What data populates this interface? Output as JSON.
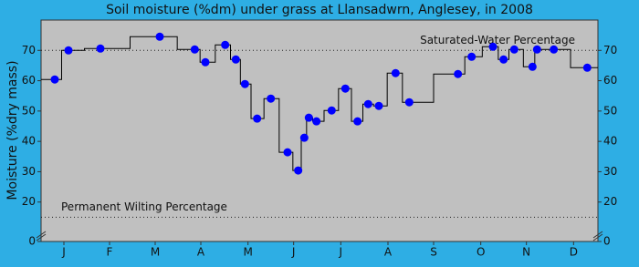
{
  "chart_data": {
    "type": "step-scatter",
    "title": "Soil moisture (%dm) under grass at Llansadwrn, Anglesey, in 2008",
    "y_label": "Moisture (%dry mass)",
    "xlim": [
      0,
      366
    ],
    "xticks": [
      {
        "value": 15,
        "label": "J"
      },
      {
        "value": 45,
        "label": "F"
      },
      {
        "value": 75,
        "label": "M"
      },
      {
        "value": 105,
        "label": "A"
      },
      {
        "value": 136,
        "label": "M"
      },
      {
        "value": 166,
        "label": "J"
      },
      {
        "value": 197,
        "label": "J"
      },
      {
        "value": 228,
        "label": "A"
      },
      {
        "value": 258,
        "label": "S"
      },
      {
        "value": 289,
        "label": "O"
      },
      {
        "value": 319,
        "label": "N"
      },
      {
        "value": 350,
        "label": "D"
      }
    ],
    "ylim": [
      0,
      80
    ],
    "axis_break": [
      0,
      10
    ],
    "yticks": [
      0,
      20,
      30,
      40,
      50,
      60,
      70
    ],
    "reference_lines": [
      {
        "name": "Saturated-Water Percentage",
        "value": 70
      },
      {
        "name": "Permanent Wilting Percentage",
        "value": 15
      }
    ],
    "series": [
      {
        "color": "#0000ff",
        "line_color": "#000000",
        "x": [
          9,
          18,
          39,
          78,
          101,
          108,
          121,
          128,
          134,
          142,
          151,
          162,
          169,
          173,
          176,
          181,
          191,
          200,
          208,
          215,
          222,
          233,
          242,
          274,
          283,
          297,
          304,
          311,
          323,
          326,
          337,
          359
        ],
        "values": [
          60.4,
          70,
          70.6,
          74.5,
          70.3,
          66.1,
          71.8,
          67,
          58.9,
          47.5,
          54.1,
          36.4,
          30.4,
          41.2,
          47.8,
          46.6,
          50.2,
          57.4,
          46.6,
          52.3,
          51.7,
          62.5,
          52.9,
          62.2,
          67.9,
          71.2,
          67,
          70.3,
          64.6,
          70.3,
          70.3,
          64.3
        ]
      }
    ]
  }
}
